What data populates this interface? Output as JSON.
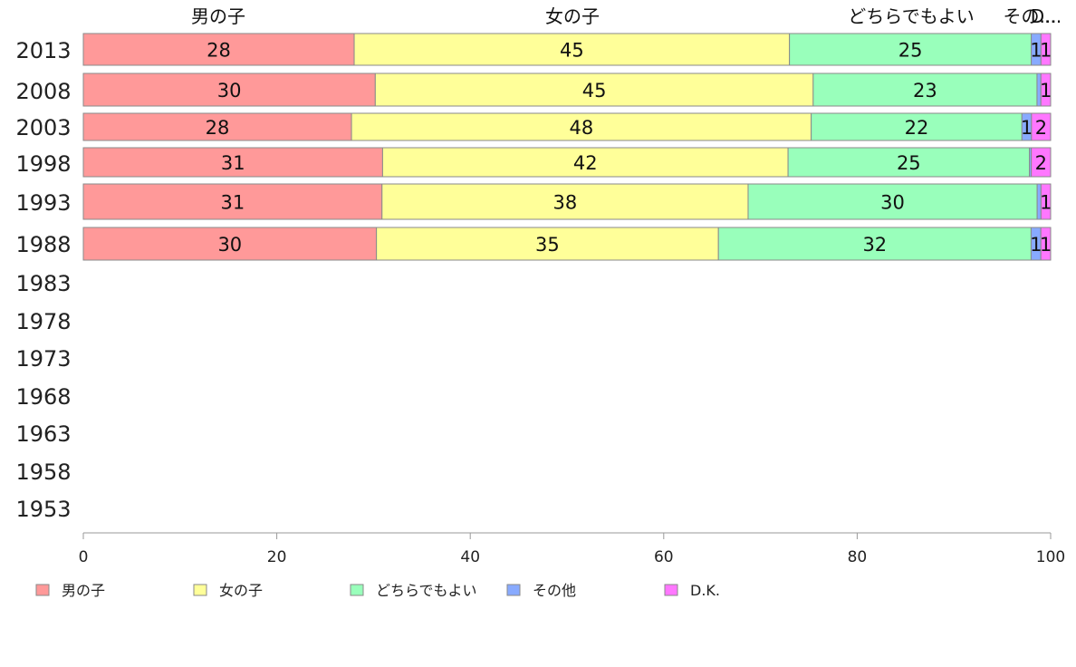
{
  "chart_data": {
    "type": "bar",
    "orientation": "horizontal",
    "stacked": "percent",
    "categories": [
      "2013",
      "2008",
      "2003",
      "1998",
      "1993",
      "1988",
      "1983",
      "1978",
      "1973",
      "1968",
      "1963",
      "1958",
      "1953"
    ],
    "series": [
      {
        "name": "男の子",
        "color": "#ff9999",
        "values": [
          28,
          30,
          28,
          31,
          31,
          30,
          null,
          null,
          null,
          null,
          null,
          null,
          null
        ]
      },
      {
        "name": "女の子",
        "color": "#ffff99",
        "values": [
          45,
          45,
          48,
          42,
          38,
          35,
          null,
          null,
          null,
          null,
          null,
          null,
          null
        ]
      },
      {
        "name": "どちらでもよい",
        "color": "#99ffbb",
        "values": [
          25,
          23,
          22,
          25,
          30,
          32,
          null,
          null,
          null,
          null,
          null,
          null,
          null
        ]
      },
      {
        "name": "その他",
        "color": "#88aaff",
        "values": [
          1,
          0.4,
          1,
          0.2,
          0.4,
          1,
          null,
          null,
          null,
          null,
          null,
          null,
          null
        ]
      },
      {
        "name": "D.K.",
        "color": "#ff77ff",
        "values": [
          1,
          1,
          2,
          2,
          1,
          1,
          null,
          null,
          null,
          null,
          null,
          null,
          null
        ]
      }
    ],
    "column_headers": [
      "男の子",
      "女の子",
      "どちらでもよい",
      "その...",
      "D..."
    ],
    "xlim": [
      0,
      100
    ],
    "x_ticks": [
      0,
      20,
      40,
      60,
      80,
      100
    ],
    "grid": false,
    "legend_position": "bottom"
  }
}
